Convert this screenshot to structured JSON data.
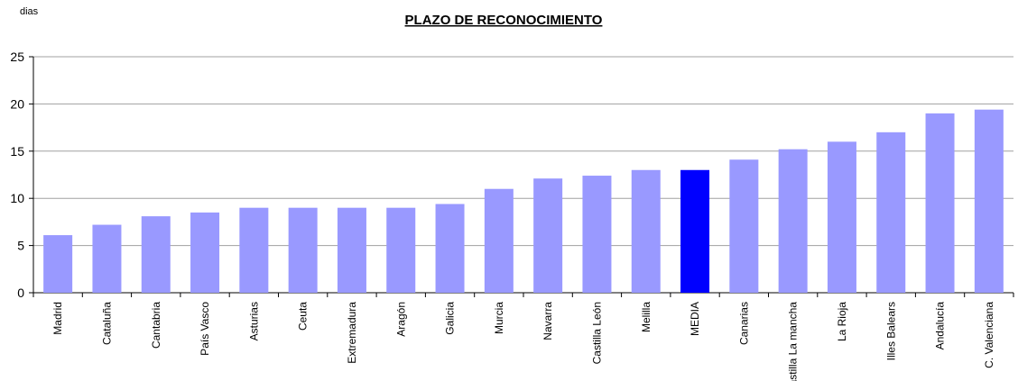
{
  "chart_data": {
    "type": "bar",
    "title": "PLAZO DE RECONOCIMIENTO",
    "y_label": "dias",
    "categories": [
      "Madrid",
      "Cataluña",
      "Cantabria",
      "País Vasco",
      "Asturias",
      "Ceuta",
      "Extremadura",
      "Aragón",
      "Galicia",
      "Murcia",
      "Navarra",
      "Castilla León",
      "Melilla",
      "MEDIA",
      "Canarias",
      "Castilla La mancha",
      "La Rioja",
      "Illes Balears",
      "Andalucía",
      "C. Valenciana"
    ],
    "values": [
      6.1,
      7.2,
      8.1,
      8.5,
      9,
      9,
      9,
      9,
      9.4,
      11,
      12.1,
      12.4,
      13,
      13,
      14.1,
      15.2,
      16,
      17,
      19,
      19.4
    ],
    "colors": [
      "#9999ff",
      "#9999ff",
      "#9999ff",
      "#9999ff",
      "#9999ff",
      "#9999ff",
      "#9999ff",
      "#9999ff",
      "#9999ff",
      "#9999ff",
      "#9999ff",
      "#9999ff",
      "#9999ff",
      "#0000ff",
      "#9999ff",
      "#9999ff",
      "#9999ff",
      "#9999ff",
      "#9999ff",
      "#9999ff"
    ],
    "ylim": [
      0,
      25
    ],
    "yticks": [
      0,
      5,
      10,
      15,
      20,
      25
    ],
    "grid": true
  }
}
